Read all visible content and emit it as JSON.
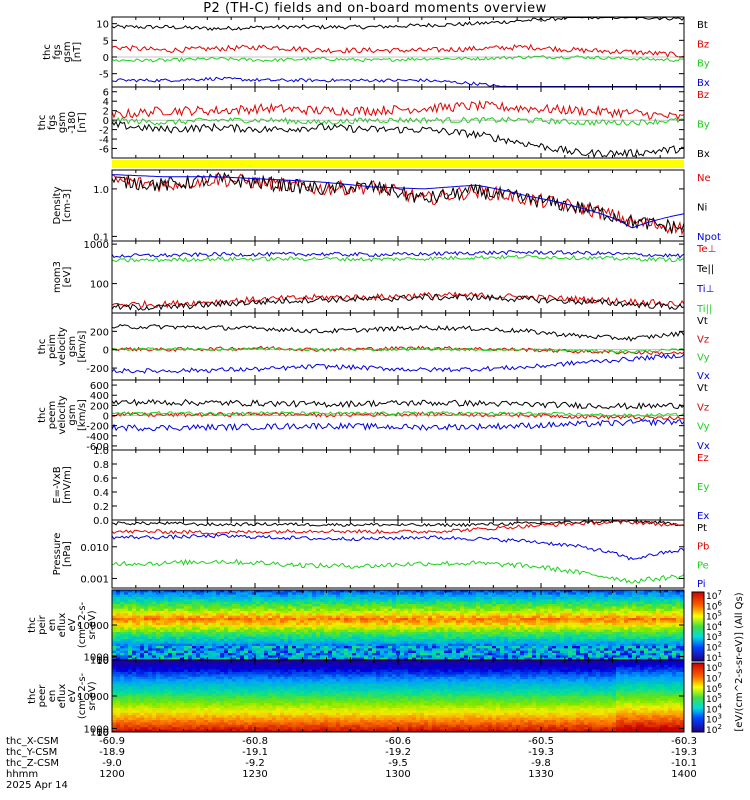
{
  "title": "P2 (TH-C) fields and on-board moments overview",
  "colors": {
    "black": "#000000",
    "red": "#e00000",
    "green": "#20d020",
    "blue": "#0000e0",
    "yellow": "#ffff00"
  },
  "chart_data": [
    {
      "type": "line",
      "ylabel": [
        "thc",
        "fgs",
        "gsm",
        "[nT]"
      ],
      "ylim": [
        -9,
        12
      ],
      "yticks": [
        "10",
        "5",
        "0",
        "-5"
      ],
      "ytick_values": [
        10,
        5,
        0,
        -5
      ],
      "series": [
        {
          "name": "Bt",
          "color": "black",
          "base": [
            9,
            9,
            8.5,
            9,
            9,
            9,
            9.5,
            10,
            11,
            12,
            12,
            11.5
          ],
          "noise": 0.6
        },
        {
          "name": "Bz",
          "color": "red",
          "base": [
            3,
            2,
            2.5,
            3,
            2,
            2,
            2,
            2.5,
            3,
            2,
            1.5,
            0.5
          ],
          "noise": 0.8
        },
        {
          "name": "By",
          "color": "green",
          "base": [
            -1,
            -1,
            -0.5,
            -1,
            -0.5,
            -1,
            -0.5,
            -0.5,
            0,
            0,
            -0.5,
            -1
          ],
          "noise": 0.5
        },
        {
          "name": "Bx",
          "color": "blue",
          "base": [
            -7,
            -7,
            -6.5,
            -7,
            -7,
            -7,
            -7,
            -8,
            -10,
            -11,
            -11,
            -10
          ],
          "noise": 0.5
        }
      ]
    },
    {
      "type": "line",
      "ylabel": [
        "thc",
        "fgs",
        "gsm",
        "-180",
        "[nT]"
      ],
      "ylim": [
        -8,
        7
      ],
      "yticks": [
        "6",
        "4",
        "2",
        "0",
        "-2",
        "-4",
        "-6"
      ],
      "ytick_values": [
        6,
        4,
        2,
        0,
        -2,
        -4,
        -6
      ],
      "series": [
        {
          "name": "Bz",
          "color": "red",
          "base": [
            1,
            2,
            2,
            2.5,
            2,
            2,
            2.5,
            3,
            2.5,
            2,
            1.5,
            0.5
          ],
          "noise": 1.0
        },
        {
          "name": "By",
          "color": "green",
          "base": [
            0,
            -0.5,
            0,
            0,
            -0.5,
            0,
            0,
            0,
            0,
            -0.5,
            -0.5,
            0
          ],
          "noise": 0.6
        },
        {
          "name": "Bx",
          "color": "black",
          "base": [
            -1,
            -2,
            -1.5,
            -2,
            -1.5,
            -2,
            -2,
            -3,
            -5,
            -7,
            -7,
            -6
          ],
          "noise": 0.8
        }
      ]
    },
    {
      "type": "bar",
      "ylabel": [],
      "series": [
        {
          "name": "mode",
          "color": "yellow"
        }
      ]
    },
    {
      "type": "line",
      "scale": "log",
      "ylabel": [
        "Density",
        "[cm-3]"
      ],
      "ylim": [
        0.08,
        2.5
      ],
      "yticks": [
        "1.0",
        "0.1"
      ],
      "ytick_values": [
        1.0,
        0.1
      ],
      "series": [
        {
          "name": "Ne",
          "color": "red",
          "base": [
            1.5,
            1.2,
            1.6,
            1.3,
            1.0,
            1.1,
            0.6,
            0.9,
            0.6,
            0.4,
            0.2,
            0.15
          ],
          "noise": 0.15
        },
        {
          "name": "Ni",
          "color": "black",
          "base": [
            1.5,
            1.2,
            1.6,
            1.3,
            1.0,
            1.1,
            0.6,
            0.9,
            0.6,
            0.4,
            0.2,
            0.15
          ],
          "noise": 0.15
        },
        {
          "name": "Npot",
          "color": "blue",
          "base": [
            2.0,
            1.8,
            1.8,
            1.6,
            1.4,
            1.1,
            1.0,
            1.2,
            0.7,
            0.4,
            0.15,
            0.3
          ],
          "noise": 0.0
        }
      ]
    },
    {
      "type": "line",
      "scale": "log",
      "ylabel": [
        "mom3",
        "[eV]"
      ],
      "ylim": [
        18,
        1200
      ],
      "yticks": [
        "1000",
        "100"
      ],
      "ytick_values": [
        1000,
        100
      ],
      "series": [
        {
          "name": "Te⊥",
          "color": "red",
          "base": [
            30,
            30,
            35,
            40,
            45,
            45,
            50,
            50,
            45,
            40,
            35,
            30
          ],
          "noise": 0.08
        },
        {
          "name": "Te||",
          "color": "black",
          "base": [
            25,
            25,
            30,
            35,
            40,
            40,
            45,
            45,
            40,
            35,
            30,
            25
          ],
          "noise": 0.08
        },
        {
          "name": "Ti⊥",
          "color": "blue",
          "base": [
            500,
            520,
            550,
            550,
            560,
            540,
            560,
            600,
            620,
            600,
            550,
            500
          ],
          "noise": 0.05
        },
        {
          "name": "Ti||",
          "color": "green",
          "base": [
            380,
            400,
            420,
            420,
            430,
            410,
            430,
            460,
            480,
            450,
            420,
            400
          ],
          "noise": 0.05
        }
      ]
    },
    {
      "type": "line",
      "ylabel": [
        "thc",
        "peim",
        "velocity",
        "gsm",
        "[km/s]"
      ],
      "ylim": [
        -330,
        400
      ],
      "yticks": [
        "200",
        "0",
        "-200"
      ],
      "ytick_values": [
        200,
        0,
        -200
      ],
      "series": [
        {
          "name": "Vt",
          "color": "black",
          "base": [
            250,
            250,
            240,
            230,
            200,
            220,
            240,
            230,
            200,
            150,
            120,
            180
          ],
          "noise": 25
        },
        {
          "name": "Vz",
          "color": "red",
          "base": [
            10,
            0,
            10,
            20,
            0,
            10,
            20,
            10,
            0,
            -20,
            -30,
            -40
          ],
          "noise": 20
        },
        {
          "name": "Vy",
          "color": "green",
          "base": [
            0,
            10,
            0,
            10,
            0,
            0,
            10,
            0,
            0,
            -10,
            -20,
            0
          ],
          "noise": 15
        },
        {
          "name": "Vx",
          "color": "blue",
          "base": [
            -230,
            -230,
            -220,
            -210,
            -180,
            -200,
            -220,
            -210,
            -190,
            -140,
            -100,
            -60
          ],
          "noise": 25
        }
      ]
    },
    {
      "type": "line",
      "ylabel": [
        "thc",
        "peem",
        "velocity",
        "gsm",
        "[km/s]"
      ],
      "ylim": [
        -680,
        700
      ],
      "yticks": [
        "600",
        "400",
        "200",
        "0",
        "-200",
        "-400",
        "-600"
      ],
      "ytick_values": [
        600,
        400,
        200,
        0,
        -200,
        -400,
        -600
      ],
      "series": [
        {
          "name": "Vt",
          "color": "black",
          "base": [
            260,
            260,
            250,
            240,
            220,
            240,
            250,
            240,
            220,
            200,
            180,
            200
          ],
          "noise": 60
        },
        {
          "name": "Vz",
          "color": "red",
          "base": [
            20,
            10,
            20,
            30,
            10,
            20,
            30,
            20,
            10,
            -20,
            -40,
            -60
          ],
          "noise": 40
        },
        {
          "name": "Vy",
          "color": "green",
          "base": [
            40,
            50,
            40,
            50,
            40,
            40,
            50,
            40,
            40,
            20,
            0,
            20
          ],
          "noise": 30
        },
        {
          "name": "Vx",
          "color": "blue",
          "base": [
            -240,
            -240,
            -230,
            -220,
            -200,
            -220,
            -230,
            -220,
            -200,
            -170,
            -140,
            -120
          ],
          "noise": 60
        }
      ]
    },
    {
      "type": "line",
      "ylabel": [
        "E=-VxB",
        "[mV/m]"
      ],
      "ylim": [
        0,
        1
      ],
      "yticks": [
        "1.0",
        "0.8",
        "0.6",
        "0.4",
        "0.2",
        "0.0"
      ],
      "ytick_values": [
        1,
        0.8,
        0.6,
        0.4,
        0.2,
        0
      ],
      "series": [
        {
          "name": "Ez",
          "color": "red"
        },
        {
          "name": "Ey",
          "color": "green"
        },
        {
          "name": "Ex",
          "color": "blue"
        }
      ]
    },
    {
      "type": "line",
      "scale": "log",
      "ylabel": [
        "Pressure",
        "[nPa]"
      ],
      "ylim": [
        0.0005,
        0.07
      ],
      "yticks": [
        "0.010",
        "0.001"
      ],
      "ytick_values": [
        0.01,
        0.001
      ],
      "series": [
        {
          "name": "Pt",
          "color": "black",
          "base": [
            0.055,
            0.055,
            0.05,
            0.052,
            0.05,
            0.05,
            0.048,
            0.05,
            0.055,
            0.06,
            0.065,
            0.05
          ],
          "noise": 0.05
        },
        {
          "name": "Pb",
          "color": "red",
          "base": [
            0.03,
            0.03,
            0.028,
            0.03,
            0.032,
            0.03,
            0.03,
            0.035,
            0.045,
            0.055,
            0.06,
            0.045
          ],
          "noise": 0.06
        },
        {
          "name": "Pe",
          "color": "green",
          "base": [
            0.003,
            0.003,
            0.0035,
            0.003,
            0.0025,
            0.0025,
            0.003,
            0.003,
            0.0025,
            0.0015,
            0.0008,
            0.0012
          ],
          "noise": 0.08
        },
        {
          "name": "Pi",
          "color": "blue",
          "base": [
            0.02,
            0.02,
            0.022,
            0.02,
            0.018,
            0.018,
            0.02,
            0.018,
            0.015,
            0.01,
            0.004,
            0.008
          ],
          "noise": 0.06
        }
      ]
    },
    {
      "type": "heatmap",
      "ylabel": [
        "thc",
        "peir",
        "en",
        "eflux",
        "eV",
        "(cm^2-s-",
        "sr-eV)"
      ],
      "ylim": [
        7,
        20000
      ],
      "yticks": [
        "10000",
        "1000",
        "100",
        "10"
      ],
      "ytick_values": [
        10000,
        1000,
        100,
        10
      ],
      "peak_energy": 700
    },
    {
      "type": "heatmap",
      "ylabel": [
        "thc",
        "peer",
        "en",
        "eflux",
        "eV",
        "(cm^2-s-",
        "sr-eV)"
      ],
      "ylim": [
        7,
        20000
      ],
      "yticks": [
        "10000",
        "1000",
        "100",
        "10"
      ],
      "ytick_values": [
        10000,
        1000,
        100,
        10
      ],
      "peak_energy": 25
    }
  ],
  "colorbar": {
    "label": "[eV/(cm^2-s-sr-eV)] (All Qs)",
    "ticks": [
      "10^7",
      "10^6",
      "10^5",
      "10^4",
      "10^3",
      "10^2",
      "10^1",
      "10^0",
      "10^7",
      "10^6",
      "10^5",
      "10^4",
      "10^3",
      "10^2"
    ]
  },
  "xaxis": {
    "row_labels": [
      "thc_X-CSM",
      "thc_Y-CSM",
      "thc_Z-CSM",
      "hhmm",
      "2025 Apr 14"
    ],
    "ticks": [
      {
        "t": 0.0,
        "x": "-60.9",
        "y": "-18.9",
        "z": "-9.0",
        "hhmm": "1200"
      },
      {
        "t": 0.25,
        "x": "-60.8",
        "y": "-19.1",
        "z": "-9.2",
        "hhmm": "1230"
      },
      {
        "t": 0.5,
        "x": "-60.6",
        "y": "-19.2",
        "z": "-9.5",
        "hhmm": "1300"
      },
      {
        "t": 0.75,
        "x": "-60.5",
        "y": "-19.3",
        "z": "-9.8",
        "hhmm": "1330"
      },
      {
        "t": 1.0,
        "x": "-60.3",
        "y": "-19.3",
        "z": "-10.1",
        "hhmm": "1400"
      }
    ]
  }
}
